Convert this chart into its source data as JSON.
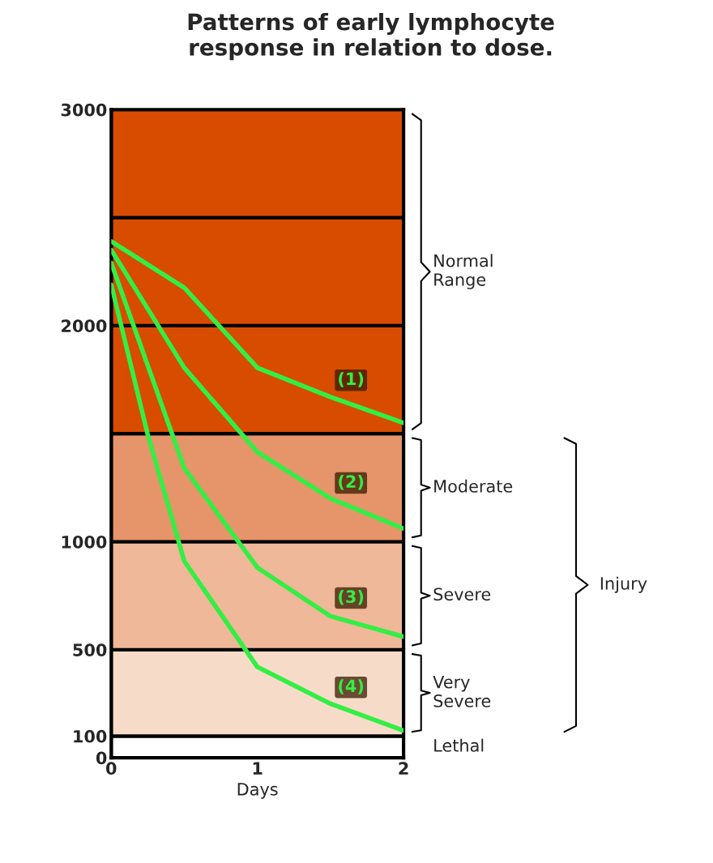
{
  "chart_data": {
    "type": "line",
    "title": "Patterns of early lymphocyte\nresponse in relation to dose.",
    "xlabel": "Days",
    "series": [
      {
        "name": "(1)",
        "color": "#33ee44",
        "x": [
          0,
          0.5,
          1,
          1.5,
          2
        ],
        "values": [
          2390,
          2175,
          1805,
          1670,
          1550
        ]
      },
      {
        "name": "(2)",
        "color": "#33ee44",
        "x": [
          0,
          0.5,
          1,
          1.5,
          2
        ],
        "values": [
          2350,
          1805,
          1415,
          1200,
          1060
        ]
      },
      {
        "name": "(3)",
        "color": "#33ee44",
        "x": [
          0,
          0.5,
          1,
          1.5,
          2
        ],
        "values": [
          2290,
          1340,
          880,
          655,
          560
        ]
      },
      {
        "name": "(4)",
        "color": "#33ee44",
        "x": [
          0,
          0.25,
          0.5,
          1,
          1.5,
          2
        ],
        "values": [
          2190,
          1495,
          910,
          420,
          250,
          125
        ]
      }
    ],
    "xlim": [
      0,
      2
    ],
    "xticks": [
      0,
      1,
      2
    ],
    "ylim": [
      0,
      3000
    ],
    "yticks": [
      0,
      100,
      500,
      1000,
      2000,
      3000
    ],
    "bands": [
      {
        "axis": "y",
        "from": 0,
        "to": 100,
        "label": "Lethal",
        "color": "#ffffff"
      },
      {
        "axis": "y",
        "from": 100,
        "to": 500,
        "label": "Very\nSevere",
        "color": "#f6dcc8"
      },
      {
        "axis": "y",
        "from": 500,
        "to": 1000,
        "label": "Severe",
        "color": "#efb898"
      },
      {
        "axis": "y",
        "from": 1000,
        "to": 1500,
        "label": "Moderate",
        "color": "#e6946a"
      },
      {
        "axis": "y",
        "from": 1500,
        "to": 3000,
        "label": "Normal\nRange",
        "color": "#d84c00"
      }
    ],
    "ref_lines": [
      {
        "axis": "y",
        "value": 2000,
        "color": "#000000"
      },
      {
        "axis": "y",
        "value": 2500,
        "color": "#000000"
      }
    ],
    "annotations": [
      "Injury"
    ],
    "legend": false,
    "marker": "none",
    "line_style": "solid"
  }
}
